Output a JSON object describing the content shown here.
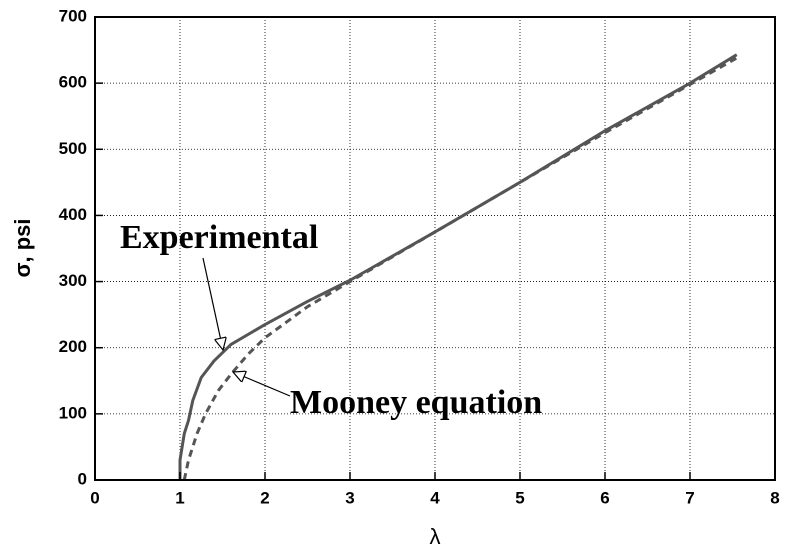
{
  "chart_data": {
    "type": "line",
    "xlabel": "λ",
    "ylabel": "σ, psi",
    "annotations": [
      "Experimental",
      "Mooney equation"
    ],
    "xlim": [
      0,
      8
    ],
    "xticks": [
      0,
      1,
      2,
      3,
      4,
      5,
      6,
      7,
      8
    ],
    "ylim": [
      0,
      700
    ],
    "yticks": [
      0,
      100,
      200,
      300,
      400,
      500,
      600,
      700
    ],
    "grid": true,
    "series": [
      {
        "name": "Experimental",
        "color": "#555555",
        "dashed": false,
        "x": [
          1.0,
          1.0,
          1.05,
          1.1,
          1.15,
          1.25,
          1.4,
          1.6,
          1.8,
          2.0,
          2.5,
          3.0,
          4.0,
          5.0,
          6.0,
          7.0,
          7.55
        ],
        "values": [
          0,
          30,
          70,
          90,
          120,
          155,
          180,
          205,
          220,
          235,
          270,
          302,
          375,
          450,
          528,
          600,
          643
        ]
      },
      {
        "name": "Mooney equation",
        "color": "#555555",
        "dashed": true,
        "x": [
          1.05,
          1.1,
          1.2,
          1.3,
          1.45,
          1.6,
          1.8,
          2.0,
          2.5,
          3.0,
          4.0,
          5.0,
          6.0,
          7.0,
          7.55
        ],
        "values": [
          0,
          30,
          70,
          100,
          135,
          160,
          190,
          215,
          262,
          300,
          375,
          450,
          525,
          598,
          638
        ]
      }
    ]
  }
}
